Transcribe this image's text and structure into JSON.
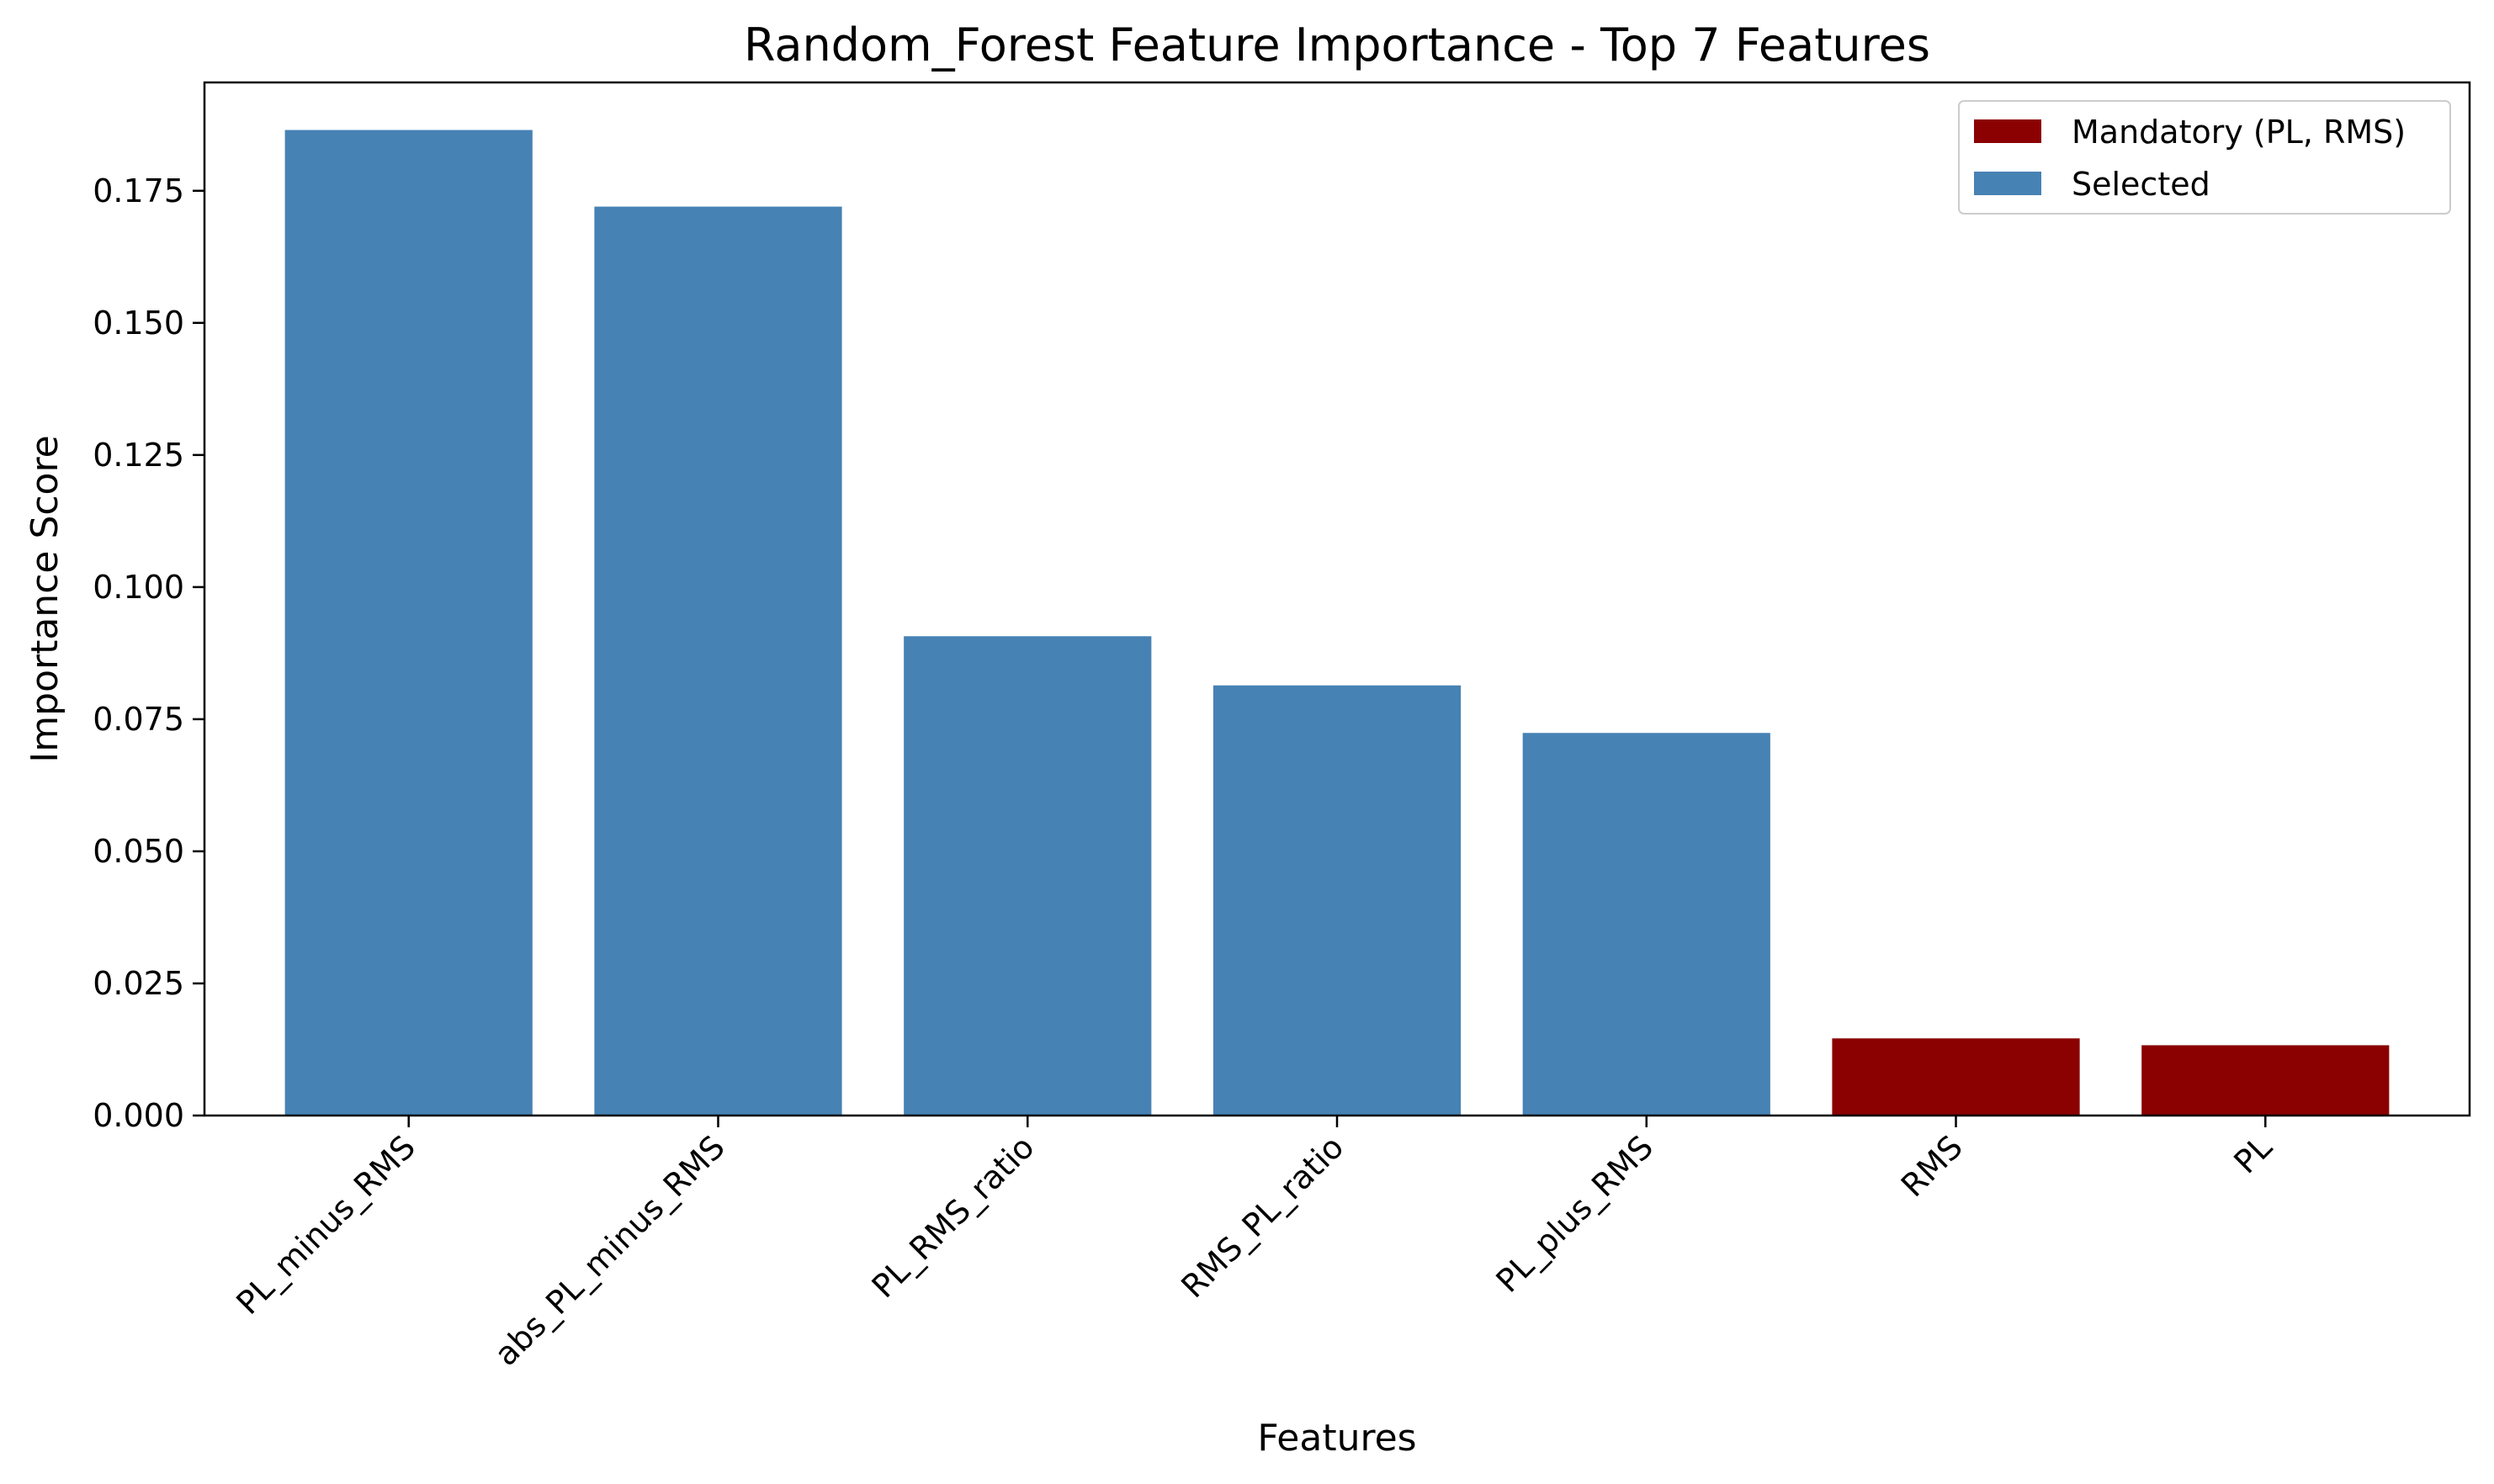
{
  "chart_data": {
    "type": "bar",
    "title": "Random_Forest Feature Importance - Top 7 Features",
    "xlabel": "Features",
    "ylabel": "Importance Score",
    "categories": [
      "PL_minus_RMS",
      "abs_PL_minus_RMS",
      "PL_RMS_ratio",
      "RMS_PL_ratio",
      "PL_plus_RMS",
      "RMS",
      "PL"
    ],
    "values": [
      0.1865,
      0.172,
      0.0907,
      0.0814,
      0.0724,
      0.0146,
      0.0133
    ],
    "groups": [
      "Selected",
      "Selected",
      "Selected",
      "Selected",
      "Selected",
      "Mandatory (PL, RMS)",
      "Mandatory (PL, RMS)"
    ],
    "ylim": [
      0,
      0.1955
    ],
    "yticks": [
      "0.000",
      "0.025",
      "0.050",
      "0.075",
      "0.100",
      "0.125",
      "0.150",
      "0.175"
    ],
    "grid": false,
    "legend_position": "top-right",
    "legend": [
      {
        "name": "Mandatory (PL, RMS)",
        "color": "#8b0000"
      },
      {
        "name": "Selected",
        "color": "#4682b4"
      }
    ]
  }
}
